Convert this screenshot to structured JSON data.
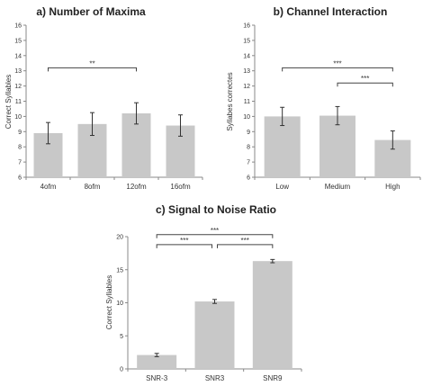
{
  "chart_data": [
    {
      "type": "bar",
      "title": "a) Number of Maxima",
      "ylabel": "Correct Syllables",
      "xlabel": "",
      "categories": [
        "4ofm",
        "8ofm",
        "12ofm",
        "16ofm"
      ],
      "values": [
        8.9,
        9.5,
        10.2,
        9.4
      ],
      "errors": [
        0.7,
        0.75,
        0.7,
        0.7
      ],
      "ylim": [
        6,
        16
      ],
      "yticks": [
        6,
        7,
        8,
        9,
        10,
        11,
        12,
        13,
        14,
        15,
        16
      ],
      "bar_color": "#c8c8c8",
      "grid": false,
      "significance": [
        {
          "from": 0,
          "to": 2,
          "label": "**",
          "y": 13.2
        }
      ]
    },
    {
      "type": "bar",
      "title": "b) Channel Interaction",
      "ylabel": "Syllabes correctes",
      "xlabel": "",
      "categories": [
        "Low",
        "Medium",
        "High"
      ],
      "values": [
        10.0,
        10.05,
        8.45
      ],
      "errors": [
        0.6,
        0.6,
        0.6
      ],
      "ylim": [
        6,
        16
      ],
      "yticks": [
        6,
        7,
        8,
        9,
        10,
        11,
        12,
        13,
        14,
        15,
        16
      ],
      "bar_color": "#c8c8c8",
      "grid": false,
      "significance": [
        {
          "from": 0,
          "to": 2,
          "label": "***",
          "y": 13.2
        },
        {
          "from": 1,
          "to": 2,
          "label": "***",
          "y": 12.2
        }
      ]
    },
    {
      "type": "bar",
      "title": "c) Signal to Noise Ratio",
      "ylabel": "Correct Syllables",
      "xlabel": "",
      "categories": [
        "SNR-3",
        "SNR3",
        "SNR9"
      ],
      "values": [
        2.1,
        10.2,
        16.3
      ],
      "errors": [
        0.25,
        0.3,
        0.25
      ],
      "ylim": [
        0,
        20
      ],
      "yticks": [
        0,
        5,
        10,
        15,
        20
      ],
      "bar_color": "#c8c8c8",
      "grid": false,
      "significance": [
        {
          "from": 0,
          "to": 2,
          "label": "***",
          "y": 20.3
        },
        {
          "from": 0,
          "to": 1,
          "label": "***",
          "y": 18.8
        },
        {
          "from": 1,
          "to": 2,
          "label": "***",
          "y": 18.8
        }
      ]
    }
  ]
}
